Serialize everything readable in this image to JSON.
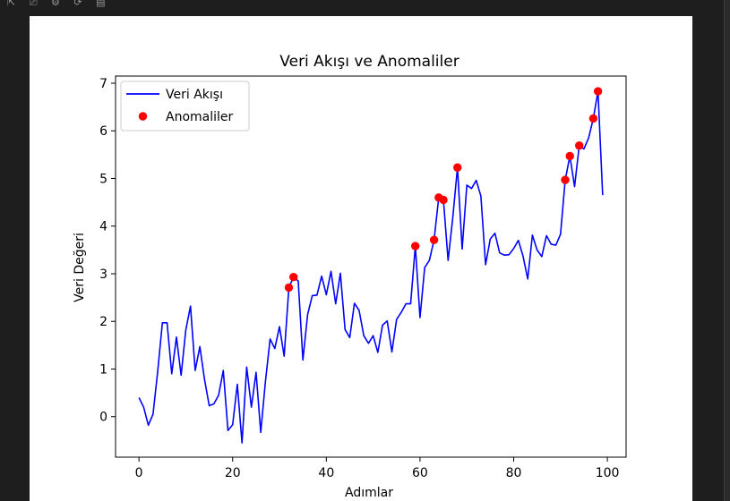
{
  "toolbar": {
    "icons": [
      "collapse-icon",
      "clear-icon",
      "settings-icon",
      "refresh-icon",
      "output-icon"
    ]
  },
  "chart_data": {
    "type": "line",
    "title": "Veri Akışı ve Anomaliler",
    "xlabel": "Adımlar",
    "ylabel": "Veri Değeri",
    "xlim": [
      -5,
      104
    ],
    "ylim": [
      -0.85,
      7.15
    ],
    "xticks": [
      0,
      20,
      40,
      60,
      80,
      100
    ],
    "yticks": [
      0,
      1,
      2,
      3,
      4,
      5,
      6,
      7
    ],
    "grid": false,
    "legend_position": "top-left",
    "series": [
      {
        "name": "Veri Akışı",
        "kind": "line",
        "color": "#0000ff",
        "x": [
          0,
          1,
          2,
          3,
          4,
          5,
          6,
          7,
          8,
          9,
          10,
          11,
          12,
          13,
          14,
          15,
          16,
          17,
          18,
          19,
          20,
          21,
          22,
          23,
          24,
          25,
          26,
          27,
          28,
          29,
          30,
          31,
          32,
          33,
          34,
          35,
          36,
          37,
          38,
          39,
          40,
          41,
          42,
          43,
          44,
          45,
          46,
          47,
          48,
          49,
          50,
          51,
          52,
          53,
          54,
          55,
          56,
          57,
          58,
          59,
          60,
          61,
          62,
          63,
          64,
          65,
          66,
          67,
          68,
          69,
          70,
          71,
          72,
          73,
          74,
          75,
          76,
          77,
          78,
          79,
          80,
          81,
          82,
          83,
          84,
          85,
          86,
          87,
          88,
          89,
          90,
          91,
          92,
          93,
          94,
          95,
          96,
          97,
          98,
          99
        ],
        "y": [
          0.4,
          0.2,
          -0.18,
          0.05,
          0.95,
          1.97,
          1.97,
          0.9,
          1.67,
          0.87,
          1.82,
          2.32,
          0.97,
          1.47,
          0.78,
          0.23,
          0.27,
          0.45,
          0.97,
          -0.29,
          -0.17,
          0.68,
          -0.55,
          1.04,
          0.2,
          0.93,
          -0.33,
          0.74,
          1.63,
          1.43,
          1.89,
          1.27,
          2.71,
          2.93,
          2.85,
          1.19,
          2.14,
          2.54,
          2.55,
          2.95,
          2.56,
          3.05,
          2.37,
          3.01,
          1.83,
          1.66,
          2.38,
          2.23,
          1.7,
          1.54,
          1.7,
          1.35,
          1.92,
          2.01,
          1.36,
          2.04,
          2.19,
          2.37,
          2.37,
          3.58,
          2.08,
          3.13,
          3.28,
          3.71,
          4.6,
          4.55,
          3.28,
          4.18,
          5.23,
          3.52,
          4.86,
          4.79,
          4.96,
          4.63,
          3.19,
          3.73,
          3.85,
          3.44,
          3.39,
          3.4,
          3.53,
          3.7,
          3.37,
          2.89,
          3.81,
          3.5,
          3.36,
          3.8,
          3.62,
          3.6,
          3.83,
          4.97,
          5.47,
          4.83,
          5.69,
          5.62,
          5.85,
          6.26,
          6.83,
          4.65
        ]
      },
      {
        "name": "Anomaliler",
        "kind": "scatter",
        "color": "#ff0000",
        "x": [
          32,
          33,
          59,
          63,
          64,
          65,
          68,
          91,
          92,
          94,
          97,
          98
        ],
        "y": [
          2.71,
          2.93,
          3.58,
          3.71,
          4.6,
          4.55,
          5.23,
          4.97,
          5.47,
          5.69,
          6.26,
          6.83
        ]
      }
    ]
  }
}
